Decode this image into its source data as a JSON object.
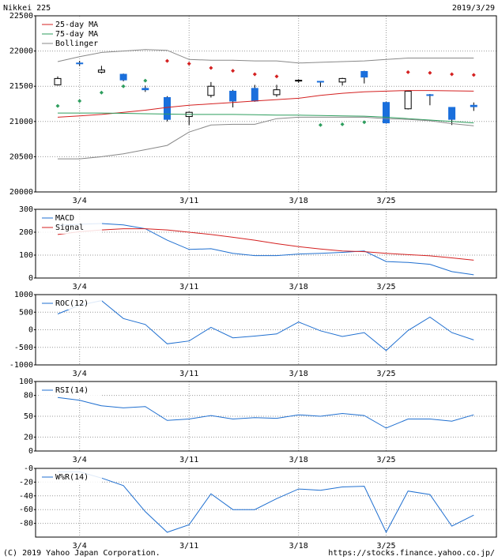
{
  "header": {
    "title": "Nikkei 225",
    "date": "2019/3/29"
  },
  "footer": {
    "copyright": "(C) 2019 Yahoo Japan Corporation.",
    "url": "https://stocks.finance.yahoo.co.jp/"
  },
  "chart_data": [
    {
      "type": "candlestick",
      "categories": [
        null,
        "3/4",
        null,
        null,
        null,
        null,
        "3/11",
        null,
        null,
        null,
        null,
        "3/18",
        null,
        null,
        null,
        "3/25",
        null,
        null,
        null,
        null
      ],
      "ylim": [
        20000,
        22500
      ],
      "yticks": [
        20000,
        20500,
        21000,
        21500,
        22000,
        22500
      ],
      "grid": true,
      "up_color": "#ffffff",
      "down_color": "#1a6fdc",
      "ohlc": {
        "open": [
          21520,
          21830,
          21700,
          21670,
          21470,
          21340,
          21070,
          21370,
          21430,
          21470,
          21380,
          21580,
          21570,
          21560,
          21710,
          21270,
          21180,
          21380,
          21200,
          21230
        ],
        "high": [
          21640,
          21860,
          21790,
          21680,
          21510,
          21360,
          21140,
          21560,
          21450,
          21520,
          21520,
          21600,
          21570,
          21620,
          21720,
          21280,
          21440,
          21390,
          21200,
          21270
        ],
        "low": [
          21510,
          21790,
          21680,
          21570,
          21420,
          21000,
          20950,
          21340,
          21200,
          21280,
          21350,
          21550,
          21490,
          21510,
          21540,
          20970,
          21170,
          21230,
          20950,
          21150
        ],
        "close": [
          21610,
          21820,
          21730,
          21590,
          21450,
          21030,
          21130,
          21500,
          21290,
          21290,
          21450,
          21585,
          21566,
          21610,
          21630,
          20980,
          21430,
          21370,
          21030,
          21210
        ]
      },
      "dots": [
        {
          "color": "#d42020",
          "values": [
            null,
            null,
            null,
            null,
            null,
            21860,
            21820,
            21760,
            21720,
            21670,
            21640,
            null,
            null,
            null,
            null,
            null,
            21700,
            21690,
            21670,
            21660
          ]
        },
        {
          "color": "#2e9e5e",
          "values": [
            21220,
            21290,
            21410,
            21500,
            21580,
            null,
            null,
            null,
            null,
            null,
            null,
            null,
            20950,
            20960,
            20990,
            null,
            null,
            null,
            null,
            null
          ]
        }
      ],
      "series": [
        {
          "name": "25-day MA",
          "color": "#d42020",
          "values": [
            21060,
            21080,
            21100,
            21130,
            21160,
            21200,
            21230,
            21250,
            21270,
            21290,
            21310,
            21330,
            21370,
            21400,
            21420,
            21430,
            21440,
            21440,
            21435,
            21430
          ]
        },
        {
          "name": "75-day MA",
          "color": "#2e9e5e",
          "values": [
            21120,
            21120,
            21120,
            21115,
            21110,
            21105,
            21100,
            21100,
            21100,
            21095,
            21090,
            21090,
            21085,
            21080,
            21075,
            21060,
            21040,
            21020,
            21000,
            20980
          ]
        },
        {
          "name": "Bollinger",
          "color": "#888888",
          "upper": [
            21850,
            21920,
            21980,
            22000,
            22020,
            22010,
            21880,
            21870,
            21870,
            21860,
            21860,
            21830,
            21840,
            21850,
            21860,
            21880,
            21900,
            21900,
            21900,
            21900
          ],
          "lower": [
            20470,
            20470,
            20500,
            20540,
            20600,
            20660,
            20850,
            20950,
            20960,
            20960,
            21040,
            21060,
            21060,
            21060,
            21060,
            21040,
            21030,
            21010,
            20970,
            20940
          ]
        }
      ]
    },
    {
      "type": "line",
      "categories": [
        null,
        "3/4",
        null,
        null,
        null,
        null,
        "3/11",
        null,
        null,
        null,
        null,
        "3/18",
        null,
        null,
        null,
        "3/25",
        null,
        null,
        null,
        null
      ],
      "ylim": [
        0,
        300
      ],
      "yticks": [
        0,
        100,
        200,
        300
      ],
      "grid": true,
      "series": [
        {
          "name": "MACD",
          "color": "#1f6fd0",
          "values": [
            230,
            235,
            238,
            232,
            215,
            165,
            125,
            128,
            108,
            98,
            98,
            105,
            108,
            112,
            118,
            72,
            68,
            60,
            28,
            14
          ]
        },
        {
          "name": "Signal",
          "color": "#d42020",
          "values": [
            190,
            202,
            210,
            215,
            215,
            210,
            200,
            190,
            178,
            165,
            150,
            137,
            127,
            118,
            115,
            108,
            102,
            97,
            88,
            78
          ]
        }
      ]
    },
    {
      "type": "line",
      "categories": [
        null,
        "3/4",
        null,
        null,
        null,
        null,
        "3/11",
        null,
        null,
        null,
        null,
        "3/18",
        null,
        null,
        null,
        "3/25",
        null,
        null,
        null,
        null
      ],
      "ylim": [
        -1000,
        1000
      ],
      "yticks": [
        -1000,
        -500,
        0,
        500,
        1000
      ],
      "grid": true,
      "series": [
        {
          "name": "ROC(12)",
          "color": "#1f6fd0",
          "values": [
            450,
            700,
            830,
            320,
            150,
            -400,
            -320,
            70,
            -230,
            -180,
            -120,
            220,
            -30,
            -190,
            -80,
            -590,
            -20,
            360,
            -80,
            -290
          ]
        }
      ]
    },
    {
      "type": "line",
      "categories": [
        null,
        "3/4",
        null,
        null,
        null,
        null,
        "3/11",
        null,
        null,
        null,
        null,
        "3/18",
        null,
        null,
        null,
        "3/25",
        null,
        null,
        null,
        null
      ],
      "ylim": [
        0,
        100
      ],
      "yticks": [
        0,
        20,
        50,
        80,
        100
      ],
      "grid": true,
      "series": [
        {
          "name": "RSI(14)",
          "color": "#1f6fd0",
          "values": [
            77,
            73,
            65,
            62,
            64,
            44,
            46,
            51,
            46,
            48,
            47,
            52,
            50,
            54,
            51,
            33,
            46,
            46,
            43,
            52
          ]
        }
      ]
    },
    {
      "type": "line",
      "categories": [
        null,
        "3/4",
        null,
        null,
        null,
        null,
        "3/11",
        null,
        null,
        null,
        null,
        "3/18",
        null,
        null,
        null,
        "3/25",
        null,
        null,
        null,
        null
      ],
      "ylim": [
        -100,
        0
      ],
      "yticks": [
        -80,
        -60,
        -40,
        -20,
        {
          "value": 0,
          "label": "-0"
        }
      ],
      "grid": true,
      "series": [
        {
          "name": "W%R(14)",
          "color": "#1f6fd0",
          "values": [
            -5,
            -5,
            -14,
            -25,
            -63,
            -93,
            -82,
            -37,
            -60,
            -60,
            -44,
            -30,
            -32,
            -27,
            -26,
            -93,
            -33,
            -38,
            -84,
            -68
          ]
        }
      ]
    }
  ]
}
